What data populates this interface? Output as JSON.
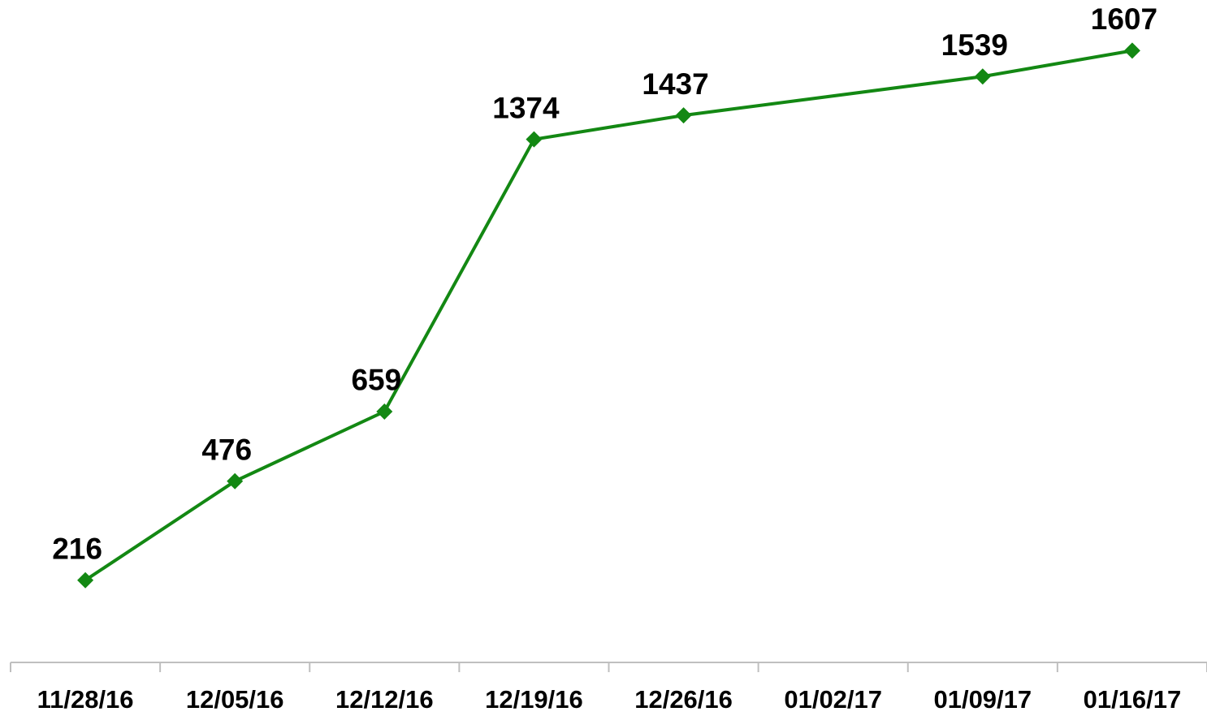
{
  "chart_data": {
    "type": "line",
    "categories": [
      "11/28/16",
      "12/05/16",
      "12/12/16",
      "12/19/16",
      "12/26/16",
      "01/02/17",
      "01/09/17",
      "01/16/17"
    ],
    "series": [
      {
        "color": "#138813",
        "x": [
          "11/28/16",
          "12/05/16",
          "12/12/16",
          "12/19/16",
          "12/26/16",
          "01/09/17",
          "01/16/17"
        ],
        "values": [
          216,
          476,
          659,
          1374,
          1437,
          1539,
          1607
        ]
      }
    ],
    "ylim": [
      0,
      1740
    ]
  }
}
